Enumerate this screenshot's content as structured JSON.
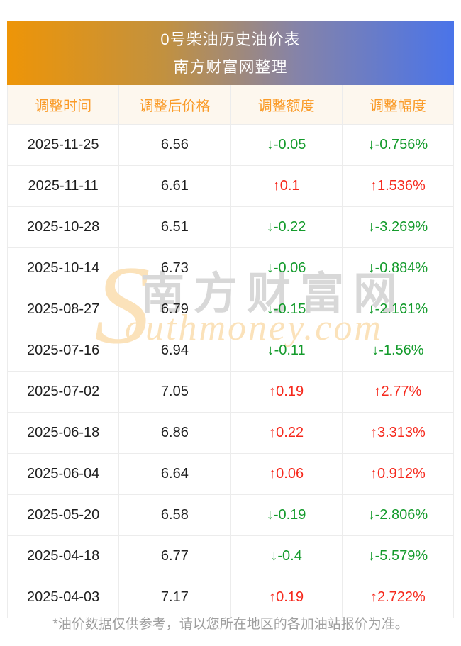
{
  "banner": {
    "title": "0号柴油历史油价表",
    "subtitle": "南方财富网整理"
  },
  "table": {
    "headers": [
      "调整时间",
      "调整后价格",
      "调整额度",
      "调整幅度"
    ],
    "rows": [
      {
        "date": "2025-11-25",
        "price": "6.56",
        "change": "↓-0.05",
        "pct": "↓-0.756%",
        "dir": "down"
      },
      {
        "date": "2025-11-11",
        "price": "6.61",
        "change": "↑0.1",
        "pct": "↑1.536%",
        "dir": "up"
      },
      {
        "date": "2025-10-28",
        "price": "6.51",
        "change": "↓-0.22",
        "pct": "↓-3.269%",
        "dir": "down"
      },
      {
        "date": "2025-10-14",
        "price": "6.73",
        "change": "↓-0.06",
        "pct": "↓-0.884%",
        "dir": "down"
      },
      {
        "date": "2025-08-27",
        "price": "6.79",
        "change": "↓-0.15",
        "pct": "↓-2.161%",
        "dir": "down"
      },
      {
        "date": "2025-07-16",
        "price": "6.94",
        "change": "↓-0.11",
        "pct": "↓-1.56%",
        "dir": "down"
      },
      {
        "date": "2025-07-02",
        "price": "7.05",
        "change": "↑0.19",
        "pct": "↑2.77%",
        "dir": "up"
      },
      {
        "date": "2025-06-18",
        "price": "6.86",
        "change": "↑0.22",
        "pct": "↑3.313%",
        "dir": "up"
      },
      {
        "date": "2025-06-04",
        "price": "6.64",
        "change": "↑0.06",
        "pct": "↑0.912%",
        "dir": "up"
      },
      {
        "date": "2025-05-20",
        "price": "6.58",
        "change": "↓-0.19",
        "pct": "↓-2.806%",
        "dir": "down"
      },
      {
        "date": "2025-04-18",
        "price": "6.77",
        "change": "↓-0.4",
        "pct": "↓-5.579%",
        "dir": "down"
      },
      {
        "date": "2025-04-03",
        "price": "7.17",
        "change": "↑0.19",
        "pct": "↑2.722%",
        "dir": "up"
      }
    ]
  },
  "watermark": {
    "s": "S",
    "en": "outhmoney.com",
    "cn": "南方财富网"
  },
  "footer": {
    "note": "*油价数据仅供参考，请以您所在地区的各加油站报价为准。"
  },
  "colors": {
    "gradient_left": "#ee9507",
    "gradient_right": "#4a74e9",
    "header_bg": "#fdf7ee",
    "header_text": "#fa9b28",
    "up_red": "#f6281c",
    "down_green": "#149b2c",
    "border": "#ececec",
    "footer_text": "#9e9e9e",
    "watermark_orange": "#fbe2ba",
    "watermark_gray": "#d8d8d8"
  },
  "chart_data": {
    "type": "table",
    "title": "0号柴油历史油价表",
    "subtitle": "南方财富网整理",
    "columns": [
      "调整时间",
      "调整后价格",
      "调整额度",
      "调整幅度"
    ],
    "rows": [
      [
        "2025-11-25",
        6.56,
        -0.05,
        "-0.756%"
      ],
      [
        "2025-11-11",
        6.61,
        0.1,
        "+1.536%"
      ],
      [
        "2025-10-28",
        6.51,
        -0.22,
        "-3.269%"
      ],
      [
        "2025-10-14",
        6.73,
        -0.06,
        "-0.884%"
      ],
      [
        "2025-08-27",
        6.79,
        -0.15,
        "-2.161%"
      ],
      [
        "2025-07-16",
        6.94,
        -0.11,
        "-1.56%"
      ],
      [
        "2025-07-02",
        7.05,
        0.19,
        "+2.77%"
      ],
      [
        "2025-06-18",
        6.86,
        0.22,
        "+3.313%"
      ],
      [
        "2025-06-04",
        6.64,
        0.06,
        "+0.912%"
      ],
      [
        "2025-05-20",
        6.58,
        -0.19,
        "-2.806%"
      ],
      [
        "2025-04-18",
        6.77,
        -0.4,
        "-5.579%"
      ],
      [
        "2025-04-03",
        7.17,
        0.19,
        "+2.722%"
      ]
    ],
    "note": "*油价数据仅供参考，请以您所在地区的各加油站报价为准。"
  }
}
